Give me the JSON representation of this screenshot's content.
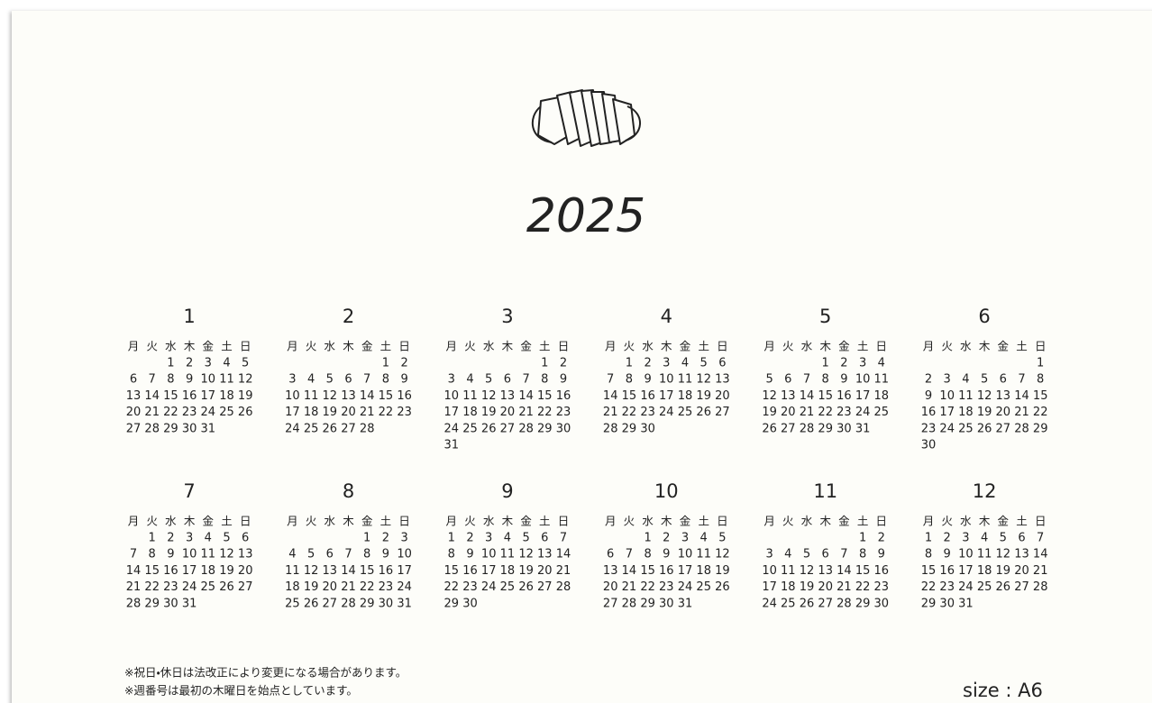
{
  "calendar": {
    "year": "2025",
    "weekdays": [
      "月",
      "火",
      "水",
      "木",
      "金",
      "土",
      "日"
    ],
    "months": [
      {
        "label": 1,
        "days": [
          1,
          2,
          3,
          4,
          5,
          6,
          7,
          8,
          9,
          10,
          11,
          12,
          13,
          14,
          15,
          16,
          17,
          18,
          19,
          20,
          21,
          22,
          23,
          24,
          25,
          26,
          27,
          28,
          29,
          30,
          31
        ]
      },
      {
        "label": 2,
        "days": [
          1,
          2,
          3,
          4,
          5,
          6,
          7,
          8,
          9,
          10,
          11,
          12,
          13,
          14,
          15,
          16,
          17,
          18,
          19,
          20,
          21,
          22,
          23,
          24,
          25,
          26,
          27,
          28
        ]
      },
      {
        "label": 3,
        "days": [
          1,
          2,
          3,
          4,
          5,
          6,
          7,
          8,
          9,
          10,
          11,
          12,
          13,
          14,
          15,
          16,
          17,
          18,
          19,
          20,
          21,
          22,
          23,
          24,
          25,
          26,
          27,
          28,
          29,
          30,
          31
        ]
      },
      {
        "label": 4,
        "days": [
          1,
          2,
          3,
          4,
          5,
          6,
          7,
          8,
          9,
          10,
          11,
          12,
          13,
          14,
          15,
          16,
          17,
          18,
          19,
          20,
          21,
          22,
          23,
          24,
          25,
          26,
          27,
          28,
          29,
          30
        ]
      },
      {
        "label": 5,
        "days": [
          1,
          2,
          3,
          4,
          5,
          6,
          7,
          8,
          9,
          10,
          11,
          12,
          13,
          14,
          15,
          16,
          17,
          18,
          19,
          20,
          21,
          22,
          23,
          24,
          25,
          26,
          27,
          28,
          29,
          30,
          31
        ]
      },
      {
        "label": 6,
        "days": [
          1,
          2,
          3,
          4,
          5,
          6,
          7,
          8,
          9,
          10,
          11,
          12,
          13,
          14,
          15,
          16,
          17,
          18,
          19,
          20,
          21,
          22,
          23,
          24,
          25,
          26,
          27,
          28,
          29,
          30
        ]
      },
      {
        "label": 7,
        "days": [
          1,
          2,
          3,
          4,
          5,
          6,
          7,
          8,
          9,
          10,
          11,
          12,
          13,
          14,
          15,
          16,
          17,
          18,
          19,
          20,
          21,
          22,
          23,
          24,
          25,
          26,
          27,
          28,
          29,
          30,
          31
        ]
      },
      {
        "label": 8,
        "days": [
          1,
          2,
          3,
          4,
          5,
          6,
          7,
          8,
          9,
          10,
          11,
          12,
          13,
          14,
          15,
          16,
          17,
          18,
          19,
          20,
          21,
          22,
          23,
          24,
          25,
          26,
          27,
          28,
          29,
          30,
          31
        ]
      },
      {
        "label": 9,
        "days": [
          1,
          2,
          3,
          4,
          5,
          6,
          7,
          8,
          9,
          10,
          11,
          12,
          13,
          14,
          15,
          16,
          17,
          18,
          19,
          20,
          21,
          22,
          23,
          24,
          25,
          26,
          27,
          28,
          29,
          30
        ]
      },
      {
        "label": 10,
        "days": [
          1,
          2,
          3,
          4,
          5,
          6,
          7,
          8,
          9,
          10,
          11,
          12,
          13,
          14,
          15,
          16,
          17,
          18,
          19,
          20,
          21,
          22,
          23,
          24,
          25,
          26,
          27,
          28,
          29,
          30,
          31
        ]
      },
      {
        "label": 11,
        "days": [
          1,
          2,
          3,
          4,
          5,
          6,
          7,
          8,
          9,
          10,
          11,
          12,
          13,
          14,
          15,
          16,
          17,
          18,
          19,
          20,
          21,
          22,
          23,
          24,
          25,
          26,
          27,
          28,
          29,
          30
        ]
      },
      {
        "label": 12,
        "days": [
          1,
          2,
          3,
          4,
          5,
          6,
          7,
          8,
          9,
          10,
          11,
          12,
          13,
          14,
          15,
          16,
          17,
          18,
          19,
          20,
          21,
          22,
          23,
          24,
          25,
          26,
          27,
          28,
          29,
          30,
          31
        ]
      }
    ],
    "notes": [
      "※祝日・休日は法改正により変更になる場合があります。",
      "※週番号は最初の木曜日を始点としています。"
    ],
    "size": "size : A6"
  }
}
